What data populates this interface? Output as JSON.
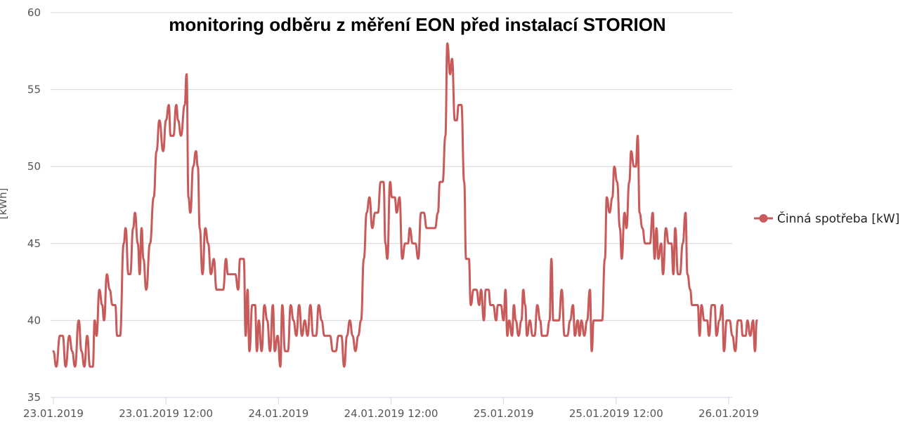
{
  "chart_data": {
    "type": "line",
    "title": "monitoring odběru z měření EON před instalací STORION",
    "ylabel": "[kWh]",
    "xlabel": "",
    "ylim": [
      35,
      60
    ],
    "yticks": [
      35,
      40,
      45,
      50,
      55,
      60
    ],
    "xlim": [
      0,
      72
    ],
    "xticks": [
      {
        "x": 0,
        "label": "23.01.2019"
      },
      {
        "x": 12,
        "label": "23.01.2019 12:00"
      },
      {
        "x": 24,
        "label": "24.01.2019"
      },
      {
        "x": 36,
        "label": "24.01.2019 12:00"
      },
      {
        "x": 48,
        "label": "25.01.2019"
      },
      {
        "x": 60,
        "label": "25.01.2019 12:00"
      },
      {
        "x": 72,
        "label": "26.01.2019"
      }
    ],
    "grid": true,
    "legend_position": "right",
    "series": [
      {
        "name": "Činná spotřeba [kW]",
        "color": "#c85a5a",
        "points": [
          [
            0.0,
            38
          ],
          [
            0.3,
            37
          ],
          [
            0.7,
            39
          ],
          [
            1.0,
            39
          ],
          [
            1.3,
            37
          ],
          [
            1.7,
            39
          ],
          [
            2.0,
            38
          ],
          [
            2.3,
            37
          ],
          [
            2.7,
            40
          ],
          [
            3.0,
            38
          ],
          [
            3.3,
            37
          ],
          [
            3.6,
            39
          ],
          [
            3.9,
            37
          ],
          [
            4.2,
            37
          ],
          [
            4.4,
            40
          ],
          [
            4.6,
            39
          ],
          [
            4.9,
            42
          ],
          [
            5.2,
            41
          ],
          [
            5.4,
            40
          ],
          [
            5.7,
            43
          ],
          [
            6.0,
            42
          ],
          [
            6.3,
            41
          ],
          [
            6.6,
            41
          ],
          [
            6.8,
            39
          ],
          [
            7.1,
            39
          ],
          [
            7.5,
            45
          ],
          [
            7.7,
            46
          ],
          [
            8.0,
            43
          ],
          [
            8.2,
            43
          ],
          [
            8.5,
            46
          ],
          [
            8.7,
            47
          ],
          [
            9.0,
            45
          ],
          [
            9.2,
            43
          ],
          [
            9.4,
            46
          ],
          [
            9.6,
            44
          ],
          [
            9.9,
            42
          ],
          [
            10.3,
            45
          ],
          [
            10.7,
            48
          ],
          [
            11.0,
            51
          ],
          [
            11.3,
            53
          ],
          [
            11.7,
            51
          ],
          [
            12.0,
            53
          ],
          [
            12.3,
            54
          ],
          [
            12.5,
            52
          ],
          [
            12.8,
            52
          ],
          [
            13.1,
            54
          ],
          [
            13.3,
            53
          ],
          [
            13.6,
            52
          ],
          [
            14.0,
            54
          ],
          [
            14.2,
            56
          ],
          [
            14.4,
            48
          ],
          [
            14.6,
            47
          ],
          [
            14.9,
            50
          ],
          [
            15.2,
            51
          ],
          [
            15.4,
            50
          ],
          [
            15.6,
            46
          ],
          [
            15.9,
            43
          ],
          [
            16.2,
            46
          ],
          [
            16.5,
            45
          ],
          [
            16.8,
            43
          ],
          [
            17.1,
            44
          ],
          [
            17.4,
            42
          ],
          [
            17.8,
            42
          ],
          [
            18.1,
            42
          ],
          [
            18.4,
            44
          ],
          [
            18.6,
            43
          ],
          [
            19.0,
            43
          ],
          [
            19.4,
            43
          ],
          [
            19.7,
            42
          ],
          [
            19.9,
            44
          ],
          [
            20.3,
            44
          ],
          [
            20.5,
            39
          ],
          [
            20.7,
            42
          ],
          [
            20.9,
            38
          ],
          [
            21.2,
            41
          ],
          [
            21.5,
            41
          ],
          [
            21.7,
            38
          ],
          [
            21.9,
            40
          ],
          [
            22.2,
            38
          ],
          [
            22.5,
            41
          ],
          [
            22.8,
            40
          ],
          [
            23.1,
            38
          ],
          [
            23.4,
            41
          ],
          [
            23.6,
            38
          ],
          [
            23.9,
            39
          ],
          [
            24.2,
            37
          ],
          [
            24.4,
            41
          ],
          [
            24.7,
            38
          ],
          [
            25.0,
            38
          ],
          [
            25.3,
            41
          ],
          [
            25.6,
            40
          ],
          [
            25.9,
            39
          ],
          [
            26.2,
            41
          ],
          [
            26.5,
            39
          ],
          [
            26.8,
            40
          ],
          [
            27.1,
            39
          ],
          [
            27.4,
            41
          ],
          [
            27.7,
            39
          ],
          [
            28.0,
            39
          ],
          [
            28.3,
            41
          ],
          [
            28.6,
            40
          ],
          [
            28.9,
            39
          ],
          [
            29.2,
            39
          ],
          [
            29.5,
            39
          ],
          [
            29.8,
            38
          ],
          [
            30.1,
            38
          ],
          [
            30.4,
            39
          ],
          [
            30.7,
            39
          ],
          [
            31.0,
            37
          ],
          [
            31.3,
            39
          ],
          [
            31.6,
            40
          ],
          [
            31.9,
            39
          ],
          [
            32.2,
            38
          ],
          [
            32.5,
            39
          ],
          [
            32.8,
            40
          ],
          [
            33.1,
            44
          ],
          [
            33.4,
            47
          ],
          [
            33.7,
            48
          ],
          [
            34.0,
            46
          ],
          [
            34.3,
            47
          ],
          [
            34.6,
            47
          ],
          [
            34.9,
            49
          ],
          [
            35.2,
            49
          ],
          [
            35.4,
            45
          ],
          [
            35.6,
            44
          ],
          [
            35.9,
            49
          ],
          [
            36.1,
            48
          ],
          [
            36.4,
            48
          ],
          [
            36.6,
            47
          ],
          [
            36.9,
            48
          ],
          [
            37.2,
            44
          ],
          [
            37.5,
            45
          ],
          [
            37.8,
            45
          ],
          [
            38.0,
            46
          ],
          [
            38.3,
            45
          ],
          [
            38.6,
            45
          ],
          [
            38.9,
            44
          ],
          [
            39.2,
            47
          ],
          [
            39.5,
            47
          ],
          [
            39.8,
            46
          ],
          [
            40.1,
            46
          ],
          [
            40.4,
            46
          ],
          [
            40.7,
            46
          ],
          [
            41.0,
            47
          ],
          [
            41.2,
            49
          ],
          [
            41.5,
            49
          ],
          [
            41.8,
            52
          ],
          [
            42.0,
            58
          ],
          [
            42.3,
            56
          ],
          [
            42.5,
            57
          ],
          [
            42.8,
            53
          ],
          [
            43.0,
            53
          ],
          [
            43.2,
            54
          ],
          [
            43.5,
            54
          ],
          [
            43.8,
            49
          ],
          [
            44.0,
            44
          ],
          [
            44.3,
            44
          ],
          [
            44.5,
            41
          ],
          [
            44.8,
            42
          ],
          [
            45.1,
            42
          ],
          [
            45.4,
            41
          ],
          [
            45.6,
            42
          ],
          [
            45.9,
            40
          ],
          [
            46.1,
            42
          ],
          [
            46.4,
            42
          ],
          [
            46.6,
            41
          ],
          [
            46.9,
            41
          ],
          [
            47.2,
            40
          ],
          [
            47.4,
            41
          ],
          [
            47.7,
            41
          ],
          [
            48.0,
            40
          ],
          [
            48.2,
            42
          ],
          [
            48.4,
            39
          ],
          [
            48.6,
            40
          ],
          [
            48.9,
            39
          ],
          [
            49.1,
            41
          ],
          [
            49.3,
            40
          ],
          [
            49.6,
            39
          ],
          [
            49.9,
            40
          ],
          [
            50.1,
            42
          ],
          [
            50.3,
            41
          ],
          [
            50.5,
            39
          ],
          [
            50.8,
            40
          ],
          [
            51.1,
            39
          ],
          [
            51.3,
            39
          ],
          [
            51.6,
            41
          ],
          [
            51.9,
            40
          ],
          [
            52.1,
            39
          ],
          [
            52.4,
            39
          ],
          [
            52.6,
            39
          ],
          [
            52.9,
            40
          ],
          [
            53.1,
            44
          ],
          [
            53.3,
            40
          ],
          [
            53.6,
            40
          ],
          [
            53.9,
            40
          ],
          [
            54.2,
            42
          ],
          [
            54.5,
            39
          ],
          [
            54.8,
            39
          ],
          [
            55.1,
            40
          ],
          [
            55.4,
            41
          ],
          [
            55.6,
            39
          ],
          [
            55.9,
            40
          ],
          [
            56.1,
            39
          ],
          [
            56.3,
            40
          ],
          [
            56.6,
            39
          ],
          [
            56.9,
            40
          ],
          [
            57.2,
            42
          ],
          [
            57.4,
            38
          ],
          [
            57.6,
            40
          ],
          [
            57.9,
            40
          ],
          [
            58.2,
            40
          ],
          [
            58.5,
            40
          ],
          [
            58.8,
            44
          ],
          [
            59.0,
            48
          ],
          [
            59.3,
            47
          ],
          [
            59.6,
            48
          ],
          [
            59.8,
            50
          ],
          [
            60.1,
            49
          ],
          [
            60.4,
            46
          ],
          [
            60.6,
            44
          ],
          [
            60.9,
            47
          ],
          [
            61.1,
            46
          ],
          [
            61.4,
            49
          ],
          [
            61.6,
            51
          ],
          [
            61.9,
            50
          ],
          [
            62.1,
            50
          ],
          [
            62.3,
            52
          ],
          [
            62.5,
            47
          ],
          [
            62.8,
            46
          ],
          [
            63.1,
            45
          ],
          [
            63.4,
            45
          ],
          [
            63.6,
            45
          ],
          [
            63.9,
            47
          ],
          [
            64.1,
            44
          ],
          [
            64.3,
            46
          ],
          [
            64.5,
            44
          ],
          [
            64.8,
            45
          ],
          [
            65.0,
            43
          ],
          [
            65.3,
            46
          ],
          [
            65.6,
            45
          ],
          [
            65.9,
            45
          ],
          [
            66.1,
            43
          ],
          [
            66.3,
            46
          ],
          [
            66.6,
            43
          ],
          [
            66.8,
            43
          ],
          [
            67.1,
            45
          ],
          [
            67.4,
            47
          ],
          [
            67.6,
            43
          ],
          [
            67.9,
            42
          ],
          [
            68.1,
            41
          ],
          [
            68.4,
            41
          ],
          [
            68.7,
            41
          ],
          [
            68.9,
            39
          ],
          [
            69.1,
            41
          ],
          [
            69.4,
            40
          ],
          [
            69.7,
            40
          ],
          [
            69.9,
            39
          ],
          [
            70.2,
            41
          ],
          [
            70.5,
            41
          ],
          [
            70.7,
            39
          ],
          [
            71.0,
            40
          ],
          [
            71.3,
            41
          ],
          [
            71.5,
            38
          ],
          [
            71.8,
            40
          ],
          [
            72.1,
            40
          ],
          [
            72.4,
            39
          ],
          [
            72.7,
            38
          ],
          [
            73.0,
            40
          ],
          [
            73.3,
            40
          ],
          [
            73.5,
            39
          ],
          [
            73.8,
            39
          ],
          [
            74.0,
            40
          ],
          [
            74.3,
            39
          ],
          [
            74.6,
            40
          ],
          [
            74.8,
            38
          ],
          [
            75.0,
            40
          ]
        ]
      }
    ]
  }
}
